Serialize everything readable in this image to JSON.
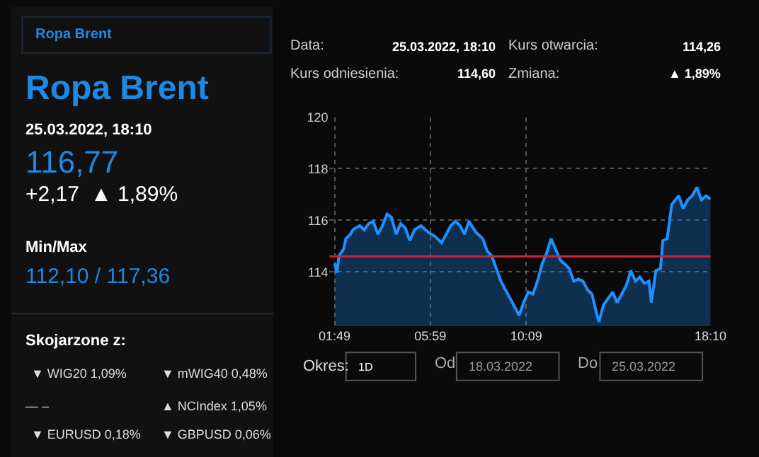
{
  "chart_data": [
    {
      "type": "other",
      "annotations": [
        "Ropa Brent",
        "Ropa Brent",
        "25.03.2022, 18:10",
        "116,77",
        "+2,17",
        "▲ 1,89%",
        "Min/Max",
        "112,10 / 117,36",
        "Skojarzone z:",
        "▼ WIG20 1,09%",
        "▼ mWIG40 0,48%",
        "— –",
        "▲ NCIndex 1,05%",
        "▼ EURUSD 0,18%",
        "▼ GBPUSD 0,06%"
      ]
    },
    {
      "type": "area",
      "line_style": "solid",
      "marker": "none",
      "grid": true,
      "xlim": [
        1.6,
        18.17
      ],
      "xticks": [
        {
          "value": 1.817,
          "label": "01:49"
        },
        {
          "value": 5.983,
          "label": "05:59"
        },
        {
          "value": 10.15,
          "label": "10:09"
        },
        {
          "value": 18.167,
          "label": "18:10"
        }
      ],
      "ylim": [
        111.9,
        120
      ],
      "yticks": [
        114,
        116,
        118,
        120
      ],
      "ref_lines": [
        {
          "axis": "y",
          "value": 114.6,
          "color": "#d0213a"
        }
      ],
      "annotations": [
        "Data:",
        "25.03.2022, 18:10",
        "Kurs otwarcia:",
        "114,26",
        "Kurs odniesienia:",
        "114,60",
        "Zmiana:",
        "▲ 1,89%",
        "Okres:",
        "1D",
        "Od",
        "18.03.2022",
        "Do",
        "25.03.2022"
      ],
      "series": [
        {
          "color": "#1e90ff",
          "x": [
            1.82,
            1.92,
            2.01,
            2.21,
            2.31,
            2.51,
            2.61,
            2.91,
            3.11,
            3.3,
            3.5,
            3.7,
            3.9,
            4.1,
            4.29,
            4.49,
            4.69,
            4.89,
            5.09,
            5.29,
            5.58,
            5.88,
            6.18,
            6.47,
            6.67,
            6.87,
            7.07,
            7.27,
            7.47,
            7.66,
            7.96,
            8.26,
            8.46,
            8.65,
            8.85,
            9.05,
            9.25,
            9.45,
            9.65,
            9.84,
            10.04,
            10.24,
            10.44,
            10.64,
            10.84,
            11.03,
            11.23,
            11.43,
            11.63,
            11.83,
            12.02,
            12.22,
            12.42,
            12.62,
            12.82,
            13.01,
            13.21,
            13.31,
            13.51,
            13.71,
            13.91,
            14.1,
            14.3,
            14.5,
            14.7,
            14.9,
            15.09,
            15.29,
            15.49,
            15.59,
            15.79,
            15.99,
            16.09,
            16.28,
            16.48,
            16.78,
            16.98,
            17.17,
            17.37,
            17.57,
            17.77,
            17.97,
            18.17
          ],
          "values": [
            114.33,
            113.97,
            114.63,
            114.88,
            115.29,
            115.46,
            115.63,
            115.79,
            115.63,
            115.87,
            115.96,
            115.46,
            115.79,
            116.24,
            116.12,
            115.46,
            115.87,
            115.71,
            115.21,
            115.63,
            115.79,
            115.54,
            115.38,
            115.13,
            115.46,
            115.79,
            115.96,
            115.79,
            115.46,
            115.96,
            115.54,
            115.29,
            114.8,
            114.63,
            114.13,
            113.64,
            113.3,
            112.97,
            112.64,
            112.31,
            112.81,
            113.22,
            113.14,
            113.64,
            114.3,
            114.71,
            115.29,
            114.88,
            114.46,
            114.3,
            114.13,
            113.64,
            113.72,
            113.64,
            113.3,
            113.14,
            112.39,
            112.06,
            112.72,
            112.97,
            113.22,
            112.81,
            113.14,
            113.47,
            114.05,
            113.64,
            113.8,
            113.55,
            113.64,
            112.81,
            114.05,
            114.13,
            115.21,
            115.29,
            116.62,
            116.95,
            116.45,
            116.79,
            116.95,
            117.28,
            116.79,
            116.95,
            116.82
          ]
        }
      ]
    }
  ]
}
